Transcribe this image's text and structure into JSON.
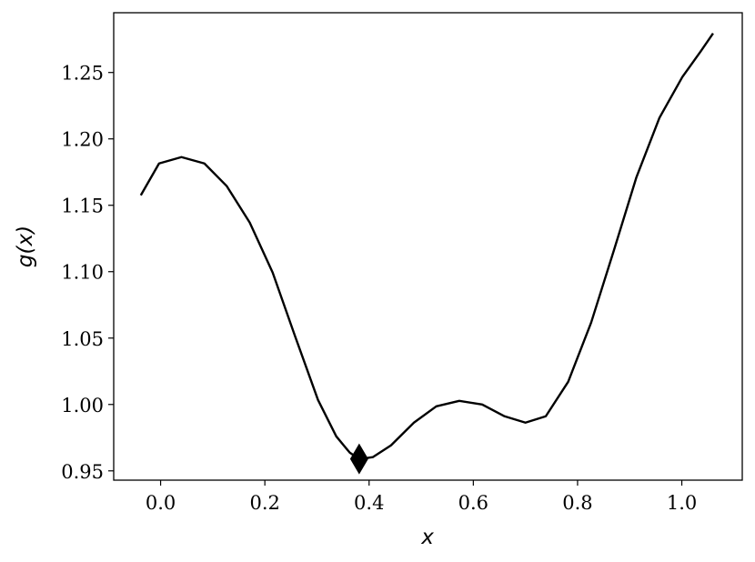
{
  "chart_data": {
    "type": "line",
    "x_label": "x",
    "y_label": "g(x)",
    "x": [
      -0.038,
      -0.003,
      0.04,
      0.084,
      0.127,
      0.171,
      0.215,
      0.258,
      0.302,
      0.337,
      0.363,
      0.381,
      0.407,
      0.442,
      0.486,
      0.529,
      0.573,
      0.617,
      0.66,
      0.7,
      0.739,
      0.782,
      0.826,
      0.87,
      0.913,
      0.957,
      1.001,
      1.036,
      1.06
    ],
    "series": [
      {
        "color": "#000000",
        "values": [
          1.1575,
          1.1815,
          1.1863,
          1.1815,
          1.1644,
          1.137,
          1.0993,
          1.0514,
          1.0034,
          0.976,
          0.9637,
          0.9589,
          0.9603,
          0.9692,
          0.9863,
          0.9986,
          1.0027,
          1.0,
          0.9911,
          0.9863,
          0.9911,
          1.0171,
          1.0616,
          1.1164,
          1.1712,
          1.2158,
          1.2466,
          1.2658,
          1.2795
        ]
      }
    ],
    "marker": {
      "x": 0.381,
      "y": 0.959,
      "color": "#000000"
    },
    "xlim": [
      -0.09,
      1.116
    ],
    "ylim": [
      0.943,
      1.295
    ],
    "xticks": [
      {
        "value": 0,
        "label": "0.0"
      },
      0.2,
      0.4,
      0.6,
      0.8,
      {
        "value": 1,
        "label": "1.0"
      }
    ],
    "yticks": [
      0.95,
      {
        "value": 1,
        "label": "1.00"
      },
      1.05,
      {
        "value": 1.1,
        "label": "1.10"
      },
      1.15,
      {
        "value": 1.2,
        "label": "1.20"
      },
      1.25
    ]
  }
}
